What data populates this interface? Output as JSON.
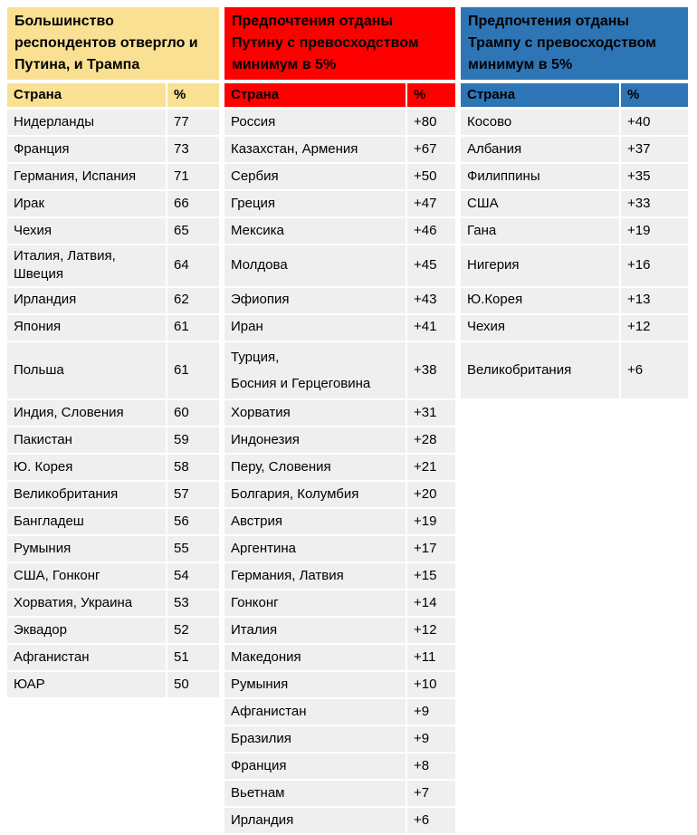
{
  "chart_data": [
    {
      "type": "table",
      "id": "rejected-both",
      "title": "Большинство респондентов отвергло и Путина, и Трампа",
      "header_bg": "#F9E092",
      "header_text_color": "#000000",
      "columns": [
        "Страна",
        "%"
      ],
      "rows": [
        [
          "Нидерланды",
          "77"
        ],
        [
          "Франция",
          "73"
        ],
        [
          "Германия, Испания",
          "71"
        ],
        [
          "Ирак",
          "66"
        ],
        [
          "Чехия",
          "65"
        ],
        [
          "Италия, Латвия, Швеция",
          "64"
        ],
        [
          "Ирландия",
          "62"
        ],
        [
          "Япония",
          "61"
        ],
        [
          "Польша",
          "61"
        ],
        [
          "Индия, Словения",
          "60"
        ],
        [
          "Пакистан",
          "59"
        ],
        [
          "Ю. Корея",
          "58"
        ],
        [
          "Великобритания",
          "57"
        ],
        [
          "Бангладеш",
          "56"
        ],
        [
          "Румыния",
          "55"
        ],
        [
          "США, Гонконг",
          "54"
        ],
        [
          "Хорватия, Украина",
          "53"
        ],
        [
          "Эквадор",
          "52"
        ],
        [
          "Афганистан",
          "51"
        ],
        [
          "ЮАР",
          "50"
        ]
      ]
    },
    {
      "type": "table",
      "id": "putin-preferred",
      "title": "Предпочтения отданы Путину с превосходством минимум в 5%",
      "header_bg": "#FF0000",
      "header_text_color": "#000000",
      "columns": [
        "Страна",
        "%"
      ],
      "rows": [
        [
          "Россия",
          "+80"
        ],
        [
          "Казахстан, Армения",
          "+67"
        ],
        [
          "Сербия",
          "+50"
        ],
        [
          "Греция",
          "+47"
        ],
        [
          "Мексика",
          "+46"
        ],
        [
          "Молдова",
          "+45"
        ],
        [
          "Эфиопия",
          "+43"
        ],
        [
          "Иран",
          "+41"
        ],
        [
          "Турция,\nБосния и Герцеговина",
          "+38"
        ],
        [
          "Хорватия",
          "+31"
        ],
        [
          "Индонезия",
          "+28"
        ],
        [
          "Перу, Словения",
          "+21"
        ],
        [
          "Болгария, Колумбия",
          "+20"
        ],
        [
          "Австрия",
          "+19"
        ],
        [
          "Аргентина",
          "+17"
        ],
        [
          "Германия, Латвия",
          "+15"
        ],
        [
          "Гонконг",
          "+14"
        ],
        [
          "Италия",
          "+12"
        ],
        [
          "Македония",
          "+11"
        ],
        [
          "Румыния",
          "+10"
        ],
        [
          "Афганистан",
          "+9"
        ],
        [
          "Бразилия",
          "+9"
        ],
        [
          "Франция",
          "+8"
        ],
        [
          "Вьетнам",
          "+7"
        ],
        [
          "Ирландия",
          "+6"
        ]
      ]
    },
    {
      "type": "table",
      "id": "trump-preferred",
      "title": "Предпочтения отданы Трампу с превосходством минимум в 5%",
      "header_bg": "#2E75B6",
      "header_text_color": "#000000",
      "columns": [
        "Страна",
        "%"
      ],
      "rows": [
        [
          "Косово",
          "+40"
        ],
        [
          "Албания",
          "+37"
        ],
        [
          "Филиппины",
          "+35"
        ],
        [
          "США",
          "+33"
        ],
        [
          "Гана",
          "+19"
        ],
        [
          "Нигерия",
          "+16"
        ],
        [
          "Ю.Корея",
          "+13"
        ],
        [
          "Чехия",
          "+12"
        ],
        [
          "Великобритания",
          "+6"
        ]
      ]
    }
  ],
  "layout_hints": {
    "page_bg": "#FFFFFF",
    "row_bg": "#EFEFEF",
    "tall_rows": {
      "6": 42,
      "9": 52
    },
    "grid": "off",
    "legend": "none"
  }
}
